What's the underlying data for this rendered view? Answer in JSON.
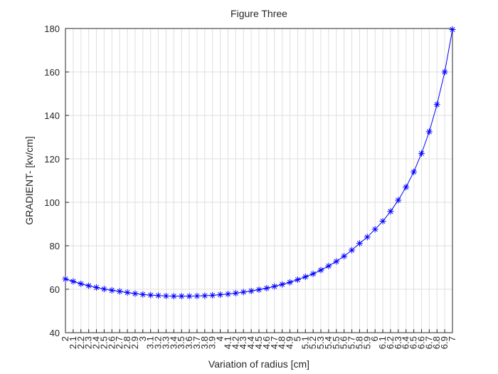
{
  "chart_data": {
    "type": "line",
    "title": "Figure Three",
    "x_label": "Variation of radius [cm]",
    "y_label": "GRADIENT- [kv/cm]",
    "x": [
      2,
      2.1,
      2.2,
      2.3,
      2.4,
      2.5,
      2.6,
      2.7,
      2.8,
      2.9,
      3,
      3.1,
      3.2,
      3.3,
      3.4,
      3.5,
      3.6,
      3.7,
      3.8,
      3.9,
      4,
      4.1,
      4.2,
      4.3,
      4.4,
      4.5,
      4.6,
      4.7,
      4.8,
      4.9,
      5,
      5.1,
      5.2,
      5.3,
      5.4,
      5.5,
      5.6,
      5.7,
      5.8,
      5.9,
      6,
      6.1,
      6.2,
      6.3,
      6.4,
      6.5,
      6.6,
      6.7,
      6.8,
      6.9,
      7
    ],
    "series": [
      {
        "color": "#0000ff",
        "marker": "asterisk",
        "values": [
          64.7,
          63.6,
          62.5,
          61.6,
          60.8,
          60.1,
          59.5,
          59.0,
          58.5,
          58.0,
          57.6,
          57.3,
          57.1,
          56.9,
          56.8,
          56.8,
          56.8,
          56.9,
          57.0,
          57.2,
          57.5,
          57.8,
          58.2,
          58.7,
          59.2,
          59.8,
          60.5,
          61.3,
          62.2,
          63.2,
          64.4,
          65.7,
          67.1,
          68.8,
          70.7,
          72.8,
          75.2,
          78.0,
          81.1,
          84.0,
          87.6,
          91.3,
          95.8,
          101,
          107,
          114,
          122.5,
          132.5,
          145,
          160,
          179.5
        ]
      }
    ],
    "xlim": [
      2,
      7
    ],
    "xticks": [
      2,
      2.1,
      2.2,
      2.3,
      2.4,
      2.5,
      2.6,
      2.7,
      2.8,
      2.9,
      3,
      3.1,
      3.2,
      3.3,
      3.4,
      3.5,
      3.6,
      3.7,
      3.8,
      3.9,
      4,
      4.1,
      4.2,
      4.3,
      4.4,
      4.5,
      4.6,
      4.7,
      4.8,
      4.9,
      5,
      5.1,
      5.2,
      5.3,
      5.4,
      5.5,
      5.6,
      5.7,
      5.8,
      5.9,
      6,
      6.1,
      6.2,
      6.3,
      6.4,
      6.5,
      6.6,
      6.7,
      6.8,
      6.9,
      7
    ],
    "ylim": [
      40,
      180
    ],
    "yticks": [
      40,
      60,
      80,
      100,
      120,
      140,
      160,
      180
    ],
    "grid": true
  }
}
